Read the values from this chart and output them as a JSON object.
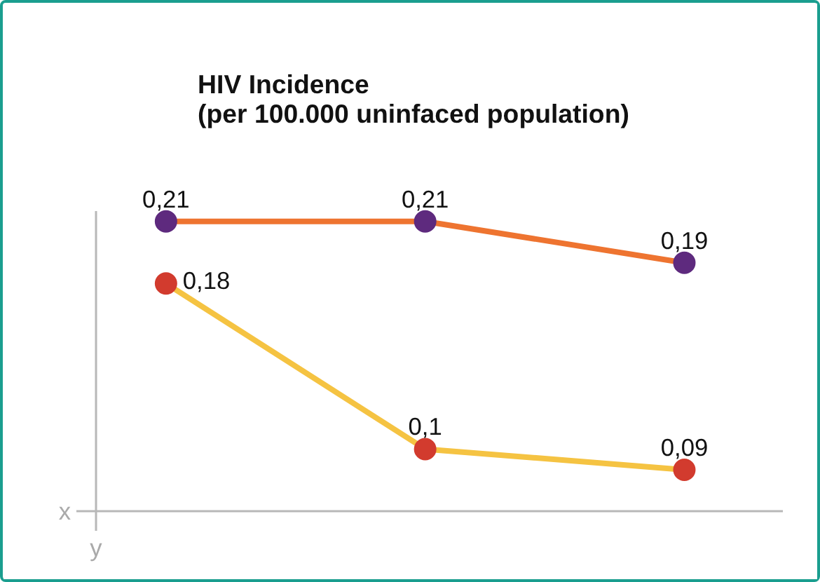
{
  "chart_data": {
    "type": "line",
    "title": "HIV Incidence\n(per 100.000 uninfaced population)",
    "xlabel": "x",
    "annotations": [
      "y"
    ],
    "categories": [
      null,
      null,
      null
    ],
    "ylim": [
      0.07,
      0.215
    ],
    "grid": false,
    "marker": "circle",
    "series": [
      {
        "color": "#ee7430",
        "colors": [
          "#5e2a7e",
          "#5e2a7e",
          "#5e2a7e"
        ],
        "values": [
          0.21,
          0.21,
          0.19
        ],
        "value_labels": [
          "0,21",
          "0,21",
          "0,19"
        ]
      },
      {
        "color": "#f5c342",
        "colors": [
          "#d23b2e",
          "#d23b2e",
          "#d23b2e"
        ],
        "values": [
          0.18,
          0.1,
          0.09
        ],
        "value_labels": [
          "0,18",
          "0,1",
          "0,09"
        ]
      }
    ]
  }
}
